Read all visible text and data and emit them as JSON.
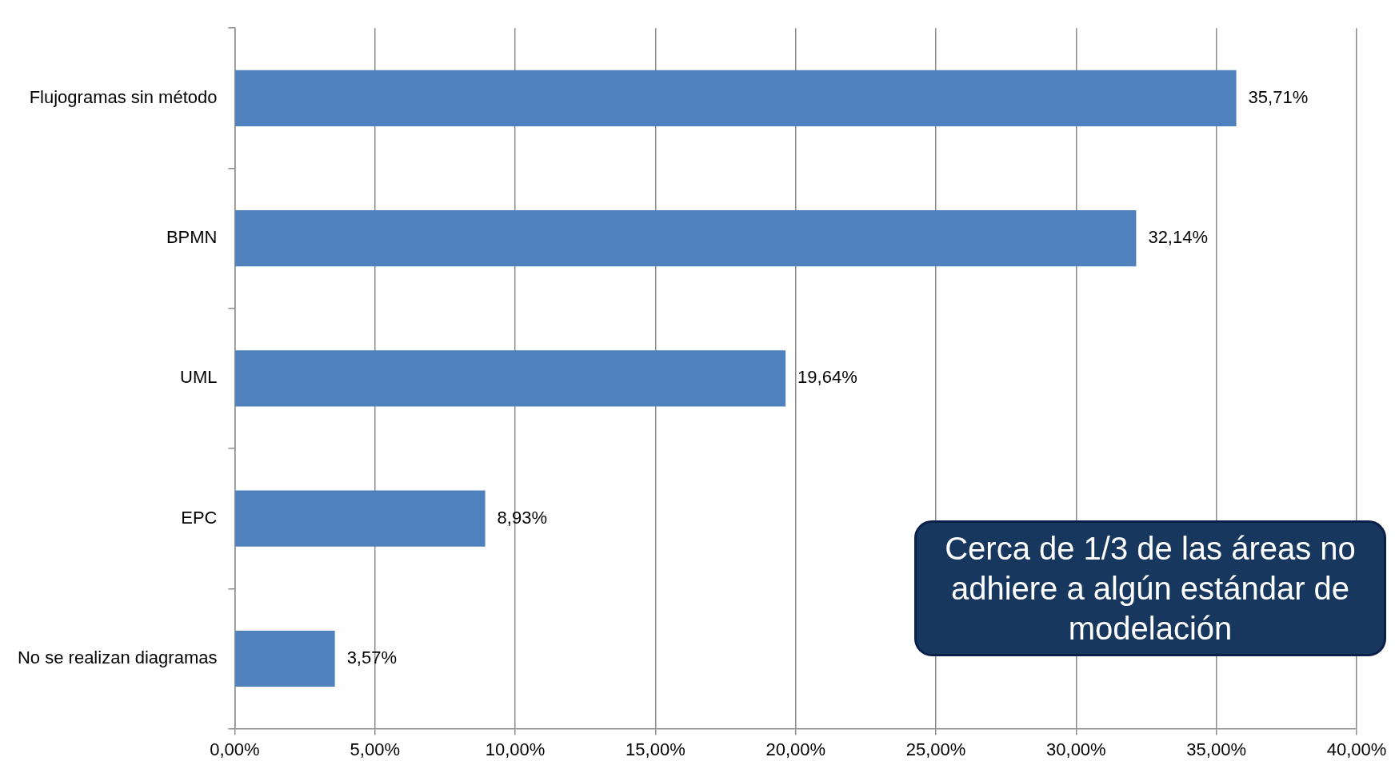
{
  "chart_data": {
    "type": "bar",
    "orientation": "horizontal",
    "categories": [
      "Flujogramas sin método",
      "BPMN",
      "UML",
      "EPC",
      "No se realizan diagramas"
    ],
    "values": [
      35.71,
      32.14,
      19.64,
      8.93,
      3.57
    ],
    "value_labels": [
      "35,71%",
      "32,14%",
      "19,64%",
      "8,93%",
      "3,57%"
    ],
    "color": "#4f81bd",
    "xlim": [
      0,
      40
    ],
    "xticks": [
      {
        "value": 0,
        "label": "0,00%"
      },
      {
        "value": 5,
        "label": "5,00%"
      },
      {
        "value": 10,
        "label": "10,00%"
      },
      {
        "value": 15,
        "label": "15,00%"
      },
      {
        "value": 20,
        "label": "20,00%"
      },
      {
        "value": 25,
        "label": "25,00%"
      },
      {
        "value": 30,
        "label": "30,00%"
      },
      {
        "value": 35,
        "label": "35,00%"
      },
      {
        "value": 40,
        "label": "40,00%"
      }
    ],
    "grid": "x",
    "legend": false,
    "annotations": [
      "Cerca de 1/3 de las áreas no adhiere a algún estándar de modelación"
    ]
  }
}
